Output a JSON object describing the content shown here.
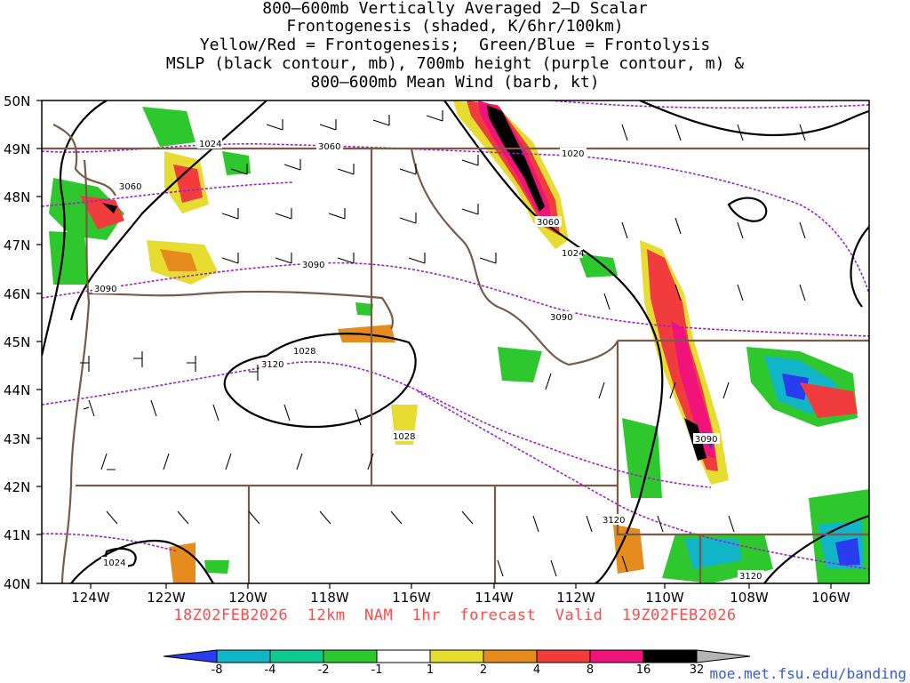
{
  "title_lines": [
    "800–600mb Vertically Averaged 2–D Scalar",
    "Frontogenesis (shaded, K/6hr/100km)",
    "Yellow/Red = Frontogenesis;  Green/Blue = Frontolysis",
    "MSLP (black contour, mb), 700mb height (purple contour, m) &",
    "800–600mb Mean Wind (barb, kt)"
  ],
  "valid_line": "18Z02FEB2026  12km  NAM  1hr  forecast  Valid  19Z02FEB2026",
  "url": "moe.met.fsu.edu/banding",
  "lat_labels": [
    "50N",
    "49N",
    "48N",
    "47N",
    "46N",
    "45N",
    "44N",
    "43N",
    "42N",
    "41N",
    "40N"
  ],
  "lon_labels": [
    "124W",
    "122W",
    "120W",
    "118W",
    "116W",
    "114W",
    "112W",
    "110W",
    "108W",
    "106W"
  ],
  "mslp_labels": [
    "1024",
    "1024",
    "1020",
    "1028",
    "1028",
    "1024"
  ],
  "height_labels": [
    "3060",
    "3060",
    "3090",
    "3090",
    "3060",
    "3090",
    "3120",
    "3090",
    "3120",
    "3120"
  ],
  "colorbar": {
    "ticks": [
      "-8",
      "-4",
      "-2",
      "-1",
      "1",
      "2",
      "4",
      "8",
      "16",
      "32"
    ],
    "colors": [
      "#2a3cf0",
      "#12b4c8",
      "#10c890",
      "#2ec82e",
      "#ffffff",
      "#e6dc32",
      "#e68c1e",
      "#f03c3c",
      "#f0147a",
      "#000000",
      "#b4b4b4"
    ]
  }
}
